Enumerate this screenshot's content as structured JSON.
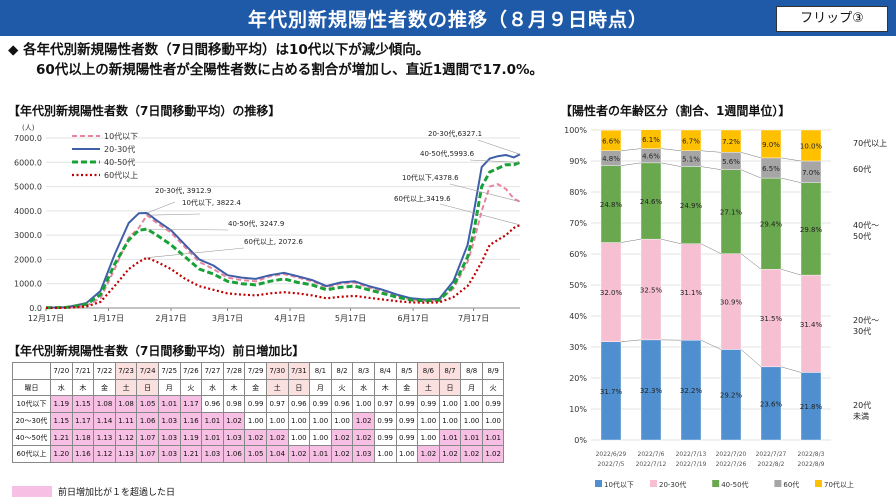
{
  "header": {
    "title": "年代別新規陽性者数の推移（８月９日時点）",
    "flip": "フリップ③"
  },
  "bullets": {
    "line1": "◆  各年代別新規陽性者数（7日間移動平均）は10代以下が減少傾向。",
    "line2": "60代以上の新規陽性者が全陽性者数に占める割合が増加し、直近1週間で17.0%。"
  },
  "sections": {
    "line_title": "【年代別新規陽性者数（7日間移動平均）の推移】",
    "bar_title": "【陽性者の年齢区分（割合、1週間単位）】",
    "table_title": "【年代別新規陽性者数（7日間移動平均）前日増加比】"
  },
  "colors": {
    "banner": "#1e5aa8",
    "teens": "#e8849c",
    "twenties": "#3f5fa8",
    "forties": "#19a137",
    "sixties": "#c00000",
    "bar_teens": "#4f8fcf",
    "bar_twenties": "#f7bfd2",
    "bar_forties": "#6aa84f",
    "bar_sixties": "#a6a6a6",
    "bar_seventies": "#ffc000",
    "highlight": "#f7bfe3"
  },
  "chart_data": [
    {
      "type": "line",
      "title": "【年代別新規陽性者数（7日間移動平均）の推移】",
      "ylabel": "(人)",
      "ylim": [
        0,
        7000
      ],
      "yticks": [
        "0.0",
        "1000.0",
        "2000.0",
        "3000.0",
        "4000.0",
        "5000.0",
        "6000.0",
        "7000.0"
      ],
      "xticks": [
        "12月17日",
        "1月17日",
        "2月17日",
        "3月17日",
        "4月17日",
        "5月17日",
        "6月17日",
        "7月17日"
      ],
      "x": [
        "12/17",
        "12/27",
        "1/6",
        "1/13",
        "1/20",
        "1/27",
        "2/1",
        "2/5",
        "2/10",
        "2/17",
        "2/24",
        "3/3",
        "3/10",
        "3/17",
        "3/24",
        "3/31",
        "4/7",
        "4/14",
        "4/21",
        "4/28",
        "5/5",
        "5/12",
        "5/19",
        "5/26",
        "6/2",
        "6/9",
        "6/16",
        "6/23",
        "6/30",
        "7/7",
        "7/14",
        "7/17",
        "7/21",
        "7/25",
        "7/29",
        "8/2",
        "8/6",
        "8/9"
      ],
      "series": [
        {
          "name": "10代以下",
          "values": [
            5,
            15,
            90,
            400,
            1600,
            2900,
            3300,
            3822,
            3500,
            3100,
            2500,
            1900,
            1600,
            1250,
            1150,
            1100,
            1300,
            1400,
            1250,
            1100,
            850,
            1000,
            1050,
            850,
            700,
            500,
            350,
            300,
            330,
            800,
            1900,
            2700,
            4000,
            5000,
            5100,
            4900,
            4500,
            4378.6
          ]
        },
        {
          "name": "20-30代",
          "values": [
            10,
            30,
            200,
            700,
            2200,
            3500,
            3900,
            3912.9,
            3600,
            3200,
            2600,
            2000,
            1750,
            1350,
            1250,
            1200,
            1350,
            1450,
            1300,
            1150,
            900,
            1050,
            1100,
            900,
            750,
            550,
            400,
            350,
            380,
            1100,
            2600,
            3900,
            5800,
            6150,
            6250,
            6300,
            6200,
            6327.1
          ]
        },
        {
          "name": "40-50代",
          "values": [
            10,
            25,
            150,
            550,
            1800,
            2800,
            3200,
            3247.9,
            3000,
            2600,
            2100,
            1600,
            1400,
            1100,
            1000,
            950,
            1100,
            1200,
            1050,
            950,
            750,
            850,
            900,
            750,
            600,
            450,
            330,
            300,
            320,
            900,
            2100,
            3100,
            5000,
            5600,
            5750,
            5900,
            5900,
            5993.6
          ]
        },
        {
          "name": "60代以上",
          "values": [
            5,
            10,
            60,
            250,
            900,
            1600,
            1900,
            2072.6,
            1900,
            1600,
            1200,
            900,
            750,
            600,
            550,
            520,
            600,
            650,
            600,
            520,
            400,
            460,
            500,
            420,
            350,
            280,
            230,
            220,
            230,
            450,
            900,
            1300,
            1900,
            2600,
            2800,
            3000,
            3300,
            3419.6
          ]
        }
      ],
      "annotations": [
        "20-30代, 3912.9",
        "10代以下, 3822.4",
        "40-50代, 3247.9",
        "60代以上, 2072.6",
        "20-30代,6327.1",
        "40-50代,5993.6",
        "10代以下,4378.6",
        "60代以上,3419.6"
      ]
    },
    {
      "type": "bar",
      "title": "【陽性者の年齢区分（割合、1週間単位）】",
      "ylim": [
        0,
        100
      ],
      "yticks": [
        "0%",
        "10%",
        "20%",
        "30%",
        "40%",
        "50%",
        "60%",
        "70%",
        "80%",
        "90%",
        "100%"
      ],
      "categories": [
        [
          "2022/6/29",
          "2022/7/5"
        ],
        [
          "2022/7/6",
          "2022/7/12"
        ],
        [
          "2022/7/13",
          "2022/7/19"
        ],
        [
          "2022/7/20",
          "2022/7/26"
        ],
        [
          "2022/7/27",
          "2022/8/2"
        ],
        [
          "2022/8/3",
          "2022/8/9"
        ]
      ],
      "series": [
        {
          "name": "10代以下",
          "values": [
            31.7,
            32.3,
            32.2,
            29.2,
            23.6,
            21.8
          ]
        },
        {
          "name": "20-30代",
          "values": [
            32.0,
            32.5,
            31.1,
            30.9,
            31.5,
            31.4
          ]
        },
        {
          "name": "40-50代",
          "values": [
            24.8,
            24.6,
            24.9,
            27.1,
            29.4,
            29.8
          ]
        },
        {
          "name": "60代",
          "values": [
            4.8,
            4.6,
            5.1,
            5.6,
            6.5,
            7.0
          ]
        },
        {
          "name": "70代以上",
          "values": [
            6.6,
            6.1,
            6.7,
            7.2,
            9.0,
            10.0
          ]
        }
      ],
      "side_labels": [
        "70代以上",
        "60代",
        "40代～\n50代",
        "20代～\n30代",
        "20代\n未満"
      ],
      "legend_position": "bottom"
    },
    {
      "type": "table",
      "title": "【年代別新規陽性者数（7日間移動平均）前日増加比】",
      "dates": [
        "7/20",
        "7/21",
        "7/22",
        "7/23",
        "7/24",
        "7/25",
        "7/26",
        "7/27",
        "7/28",
        "7/29",
        "7/30",
        "7/31",
        "8/1",
        "8/2",
        "8/3",
        "8/4",
        "8/5",
        "8/6",
        "8/7",
        "8/8",
        "8/9"
      ],
      "weekdays": [
        "水",
        "木",
        "金",
        "土",
        "日",
        "月",
        "火",
        "水",
        "木",
        "金",
        "土",
        "日",
        "月",
        "火",
        "水",
        "木",
        "金",
        "土",
        "日",
        "月",
        "火"
      ],
      "holiday_columns": [
        3,
        4,
        10,
        11,
        17,
        18
      ],
      "row_header": "曜日",
      "rows": [
        {
          "label": "10代以下",
          "values": [
            "1.19",
            "1.15",
            "1.08",
            "1.08",
            "1.05",
            "1.01",
            "1.17",
            "0.96",
            "0.98",
            "0.99",
            "0.97",
            "0.96",
            "0.99",
            "0.96",
            "1.00",
            "0.97",
            "0.99",
            "0.99",
            "1.00",
            "1.00",
            "0.99"
          ]
        },
        {
          "label": "20～30代",
          "values": [
            "1.15",
            "1.17",
            "1.14",
            "1.11",
            "1.06",
            "1.03",
            "1.16",
            "1.01",
            "1.02",
            "1.00",
            "1.00",
            "1.00",
            "1.00",
            "1.00",
            "1.02",
            "0.99",
            "0.99",
            "1.00",
            "1.00",
            "1.00",
            "1.00"
          ]
        },
        {
          "label": "40～50代",
          "values": [
            "1.21",
            "1.18",
            "1.13",
            "1.12",
            "1.07",
            "1.03",
            "1.19",
            "1.01",
            "1.03",
            "1.02",
            "1.02",
            "1.00",
            "1.00",
            "1.02",
            "1.02",
            "0.99",
            "0.99",
            "1.00",
            "1.01",
            "1.01",
            "1.01"
          ]
        },
        {
          "label": "60代以上",
          "values": [
            "1.20",
            "1.16",
            "1.12",
            "1.13",
            "1.07",
            "1.03",
            "1.21",
            "1.03",
            "1.06",
            "1.05",
            "1.04",
            "1.02",
            "1.01",
            "1.02",
            "1.03",
            "1.00",
            "1.00",
            "1.02",
            "1.02",
            "1.02",
            "1.02"
          ]
        }
      ],
      "legend": "前日増加比が１を超過した日"
    }
  ]
}
